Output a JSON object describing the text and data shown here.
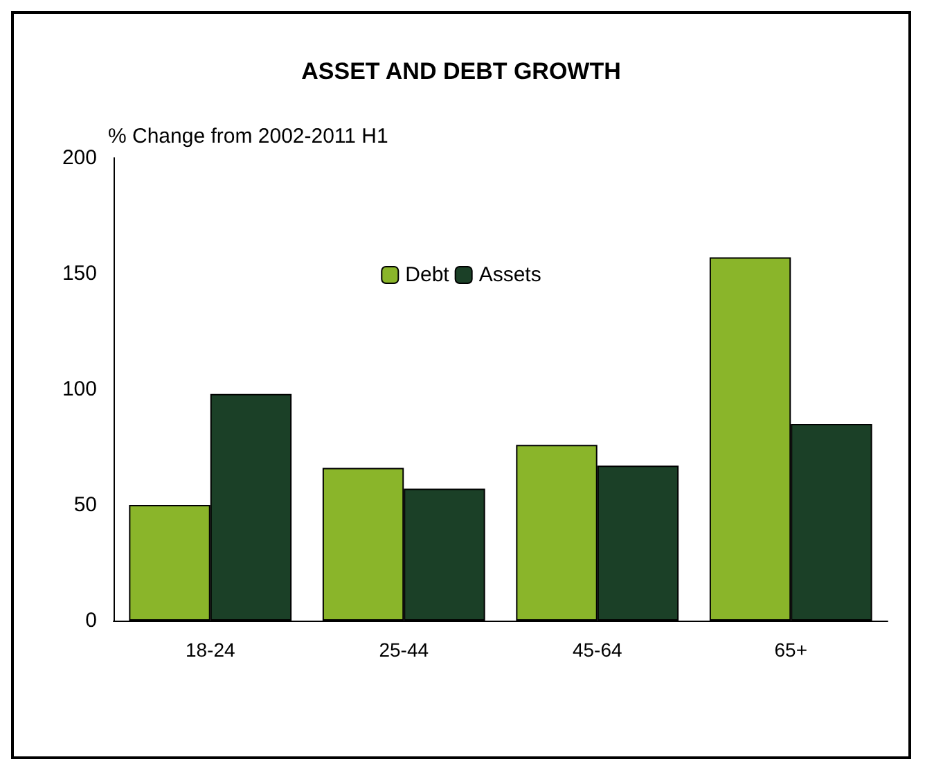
{
  "chart_data": {
    "type": "bar",
    "title": "ASSET AND DEBT GROWTH",
    "ylabel": "% Change from 2002-2011 H1",
    "categories": [
      "18-24",
      "25-44",
      "45-64",
      "65+"
    ],
    "series": [
      {
        "name": "Debt",
        "color": "#8ab52a",
        "values": [
          50,
          66,
          76,
          157
        ]
      },
      {
        "name": "Assets",
        "color": "#1b4027",
        "values": [
          98,
          57,
          67,
          85
        ]
      }
    ],
    "ylim": [
      0,
      200
    ],
    "yticks": [
      0,
      50,
      100,
      150,
      200
    ],
    "grid": false,
    "legend": "top"
  }
}
